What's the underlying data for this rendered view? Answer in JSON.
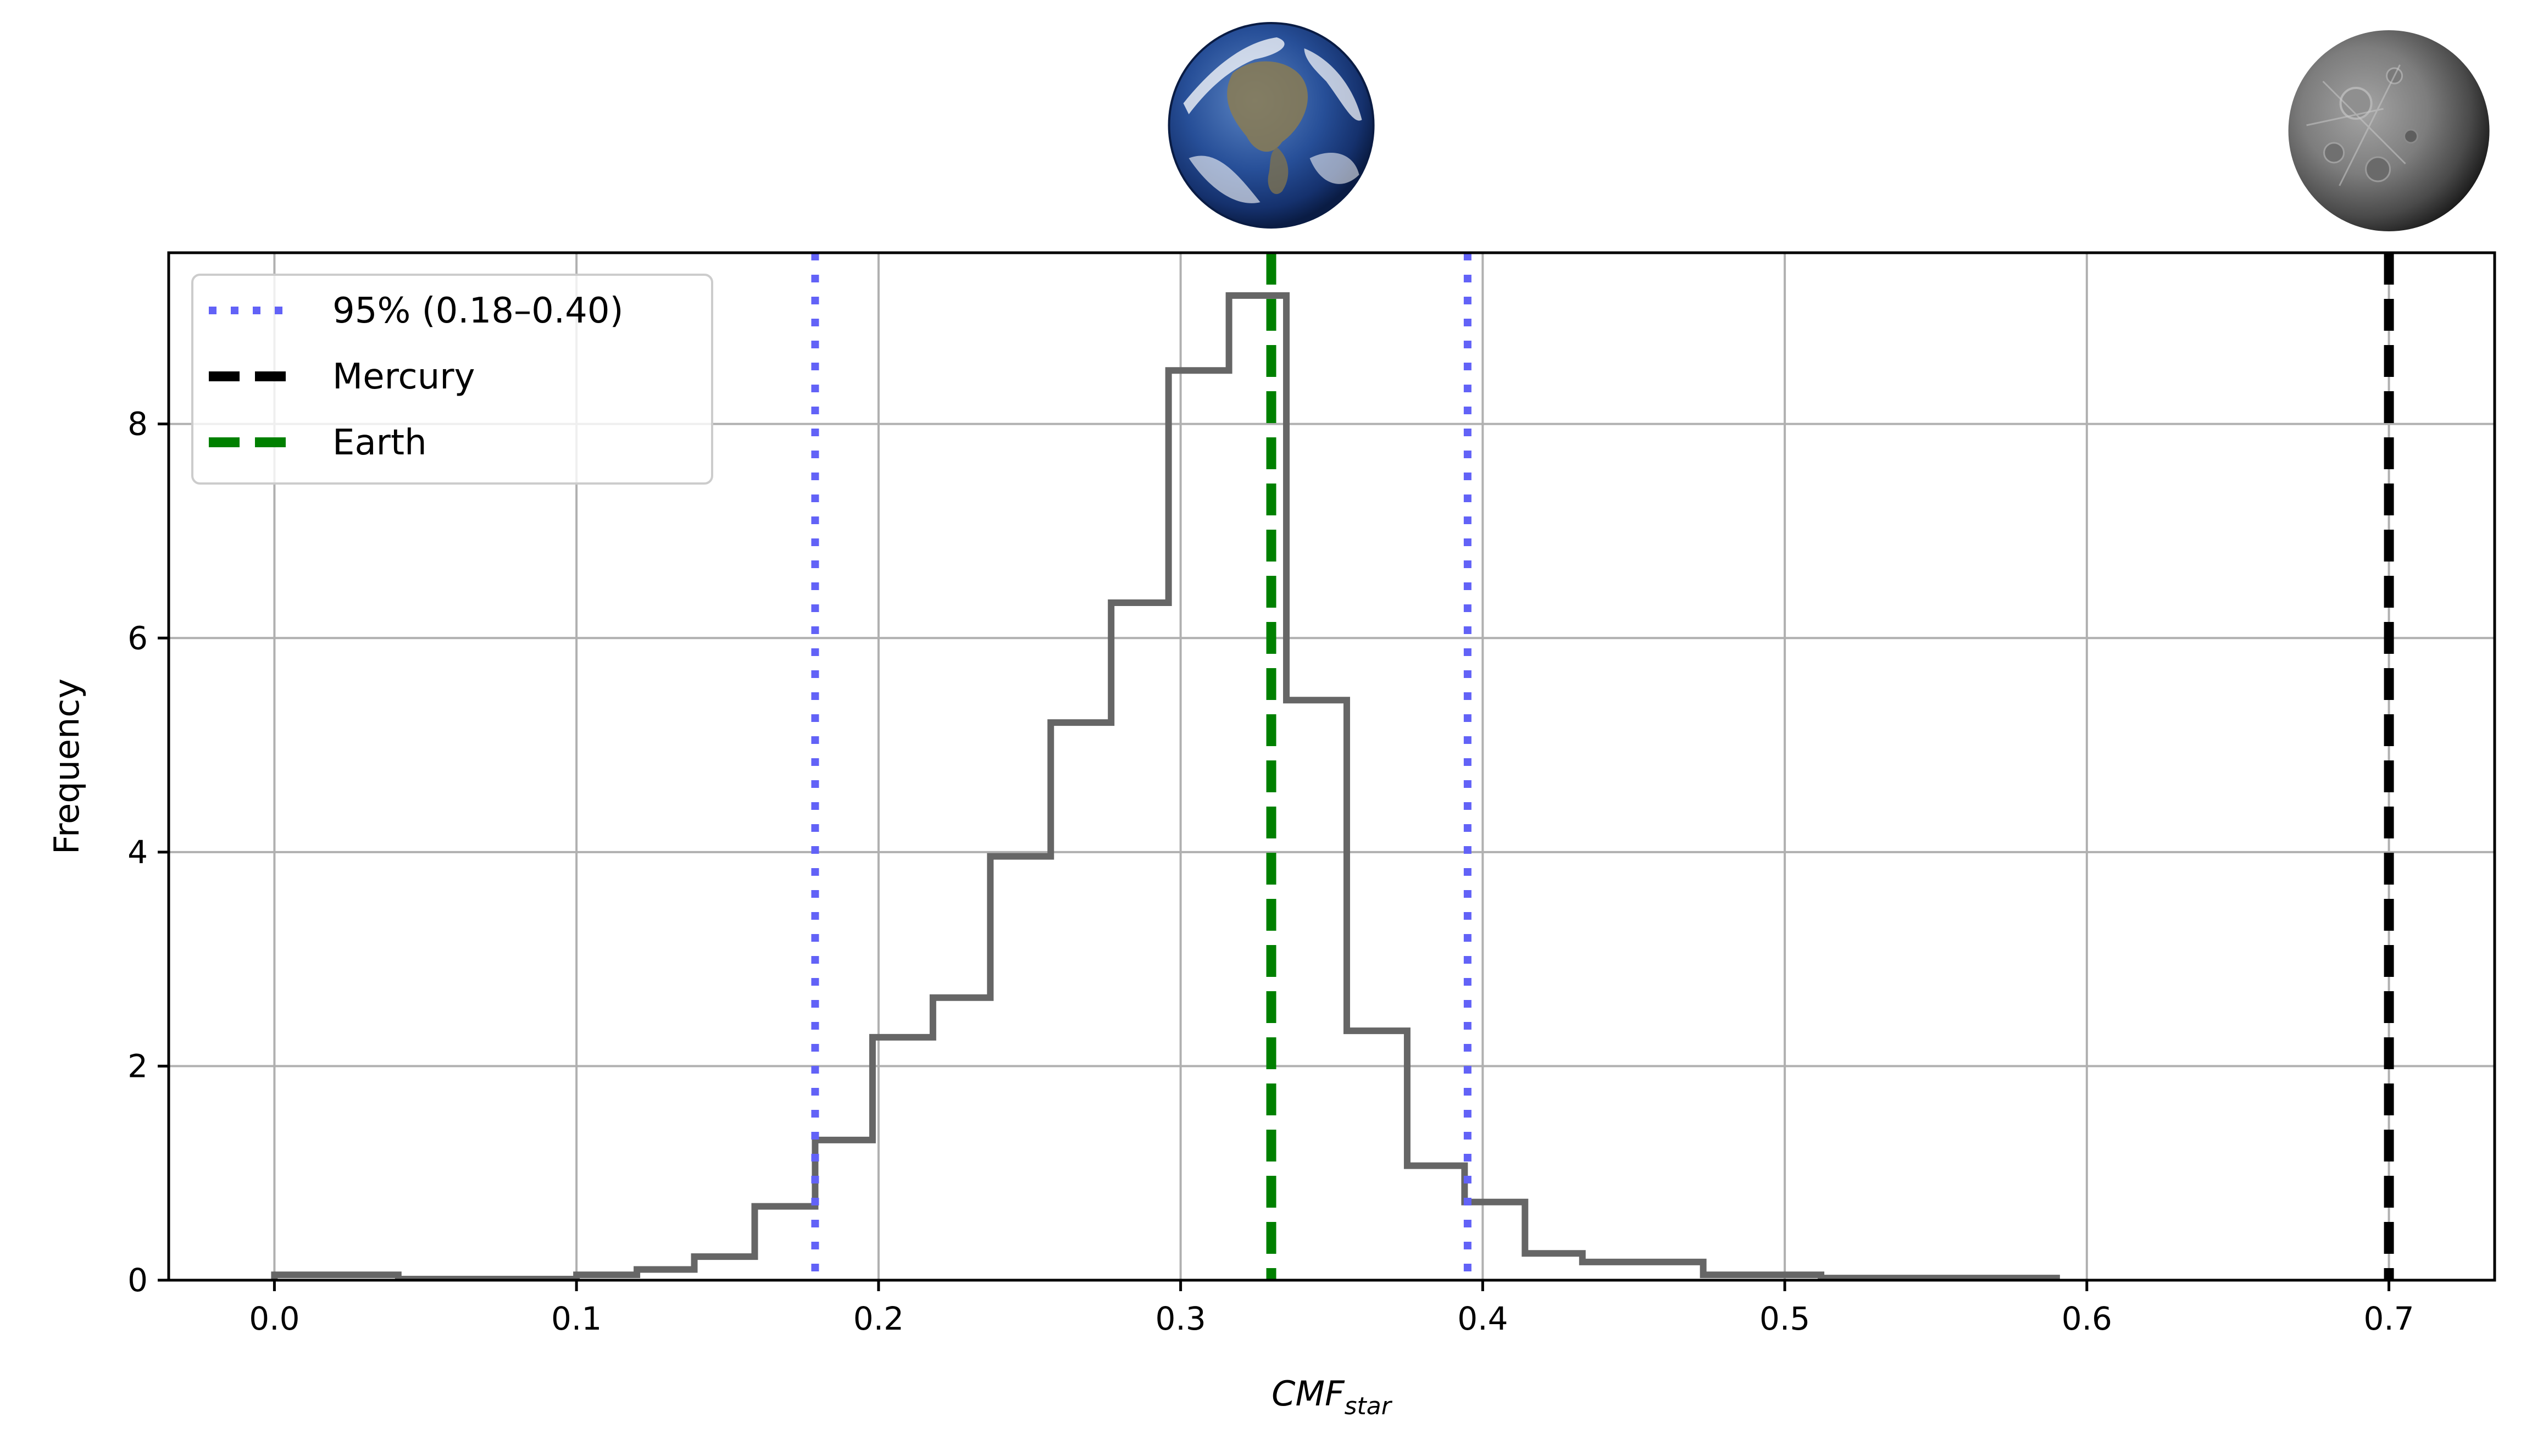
{
  "chart_data": {
    "type": "histogram",
    "xlabel": {
      "main": "CMF",
      "sub": "star"
    },
    "ylabel": "Frequency",
    "xlim": [
      -0.035,
      0.735
    ],
    "ylim": [
      0,
      9.6
    ],
    "xticks": [
      "0.0",
      "0.1",
      "0.2",
      "0.3",
      "0.4",
      "0.5",
      "0.6",
      "0.7"
    ],
    "yticks": [
      "0",
      "2",
      "4",
      "6",
      "8"
    ],
    "grid": true,
    "legend_position": "top-left",
    "histogram": {
      "color": "#666666",
      "bin_edges": [
        0.0,
        0.041,
        0.1,
        0.12,
        0.139,
        0.159,
        0.179,
        0.198,
        0.218,
        0.237,
        0.257,
        0.277,
        0.296,
        0.316,
        0.335,
        0.355,
        0.375,
        0.394,
        0.414,
        0.433,
        0.473,
        0.512,
        0.59
      ],
      "values": [
        0.05,
        0.01,
        0.05,
        0.1,
        0.22,
        0.69,
        1.31,
        2.27,
        2.64,
        3.96,
        5.21,
        6.33,
        8.5,
        9.2,
        5.42,
        2.33,
        1.07,
        0.73,
        0.25,
        0.17,
        0.05,
        0.02
      ]
    },
    "reference_lines": [
      {
        "label": "95% (0.18–0.40)",
        "x": [
          0.179,
          0.395
        ],
        "color": "#6262f7",
        "style": "dotted"
      },
      {
        "label": "Mercury",
        "x": [
          0.7
        ],
        "color": "#000000",
        "style": "dashed"
      },
      {
        "label": "Earth",
        "x": [
          0.33
        ],
        "color": "#008000",
        "style": "dashed"
      }
    ],
    "planet_images": [
      {
        "name": "earth-icon",
        "x": 0.33
      },
      {
        "name": "mercury-icon",
        "x": 0.7
      }
    ]
  }
}
